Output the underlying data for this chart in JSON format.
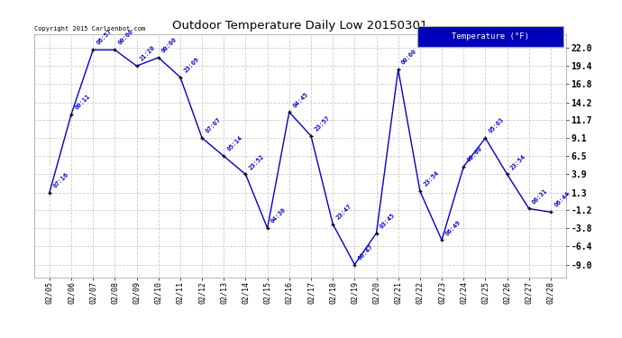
{
  "title": "Outdoor Temperature Daily Low 20150301",
  "copyright": "Copyright 2015 Carlsenbot.com",
  "legend_label": "Temperature (°F)",
  "dates": [
    "02/05",
    "02/06",
    "02/07",
    "02/08",
    "02/09",
    "02/10",
    "02/11",
    "02/12",
    "02/13",
    "02/14",
    "02/15",
    "02/16",
    "02/17",
    "02/18",
    "02/19",
    "02/20",
    "02/21",
    "02/22",
    "02/23",
    "02/24",
    "02/25",
    "02/26",
    "02/27",
    "02/28"
  ],
  "values": [
    1.3,
    12.5,
    21.7,
    21.7,
    19.4,
    20.6,
    17.8,
    9.1,
    6.5,
    3.9,
    -3.8,
    12.8,
    9.4,
    -3.2,
    -9.0,
    -4.5,
    18.9,
    1.5,
    -5.5,
    5.0,
    9.1,
    3.9,
    -1.0,
    -1.5
  ],
  "labels": [
    "07:16",
    "00:11",
    "06:57",
    "00:00",
    "21:20",
    "00:00",
    "23:09",
    "07:07",
    "05:14",
    "23:52",
    "04:30",
    "04:45",
    "23:57",
    "23:47",
    "06:47",
    "03:45",
    "00:00",
    "23:54",
    "06:49",
    "00:00",
    "05:03",
    "23:54",
    "06:31",
    "06:44"
  ],
  "yticks": [
    22.0,
    19.4,
    16.8,
    14.2,
    11.7,
    9.1,
    6.5,
    3.9,
    1.3,
    -1.2,
    -3.8,
    -6.4,
    -9.0
  ],
  "ylim": [
    -10.8,
    24.0
  ],
  "line_color": "#0000cc",
  "marker_color": "#000000",
  "label_color": "#0000cc",
  "bg_color": "#ffffff",
  "plot_bg_color": "#ffffff",
  "grid_color": "#cccccc",
  "title_color": "#000000",
  "legend_bg": "#0000bb",
  "legend_fg": "#ffffff",
  "figsize": [
    6.9,
    3.75
  ],
  "dpi": 100
}
